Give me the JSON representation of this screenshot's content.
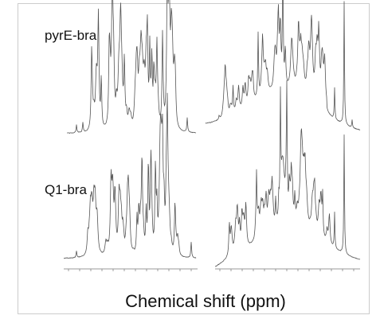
{
  "panels": [
    {
      "label": "pyrE-bra"
    },
    {
      "label": "Q1-bra"
    }
  ],
  "x_axis_label": "Chemical shift (ppm)"
}
